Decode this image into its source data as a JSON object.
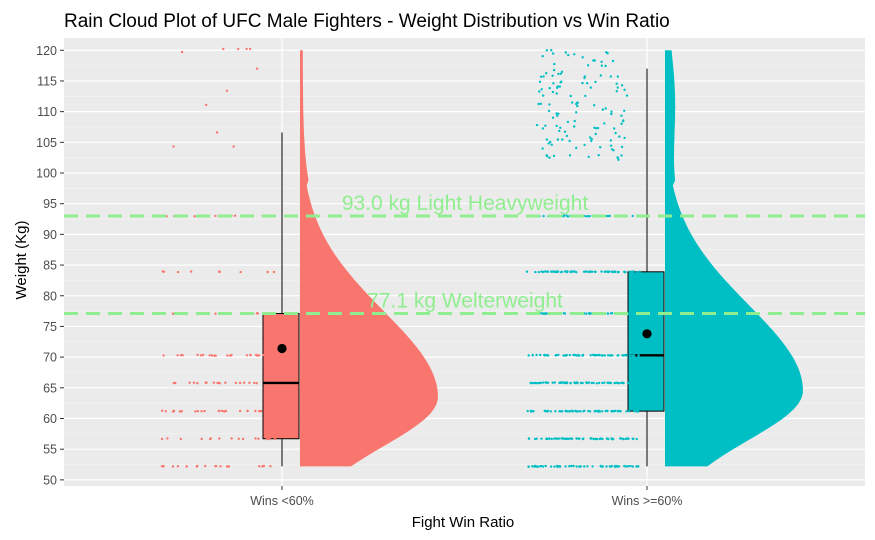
{
  "chart_data": {
    "type": "raincloud",
    "title": "Rain Cloud Plot of UFC Male Fighters - Weight Distribution vs Win Ratio",
    "xlabel": "Fight Win Ratio",
    "ylabel": "Weight (Kg)",
    "ylim": [
      49,
      122
    ],
    "yticks": [
      50,
      55,
      60,
      65,
      70,
      75,
      80,
      85,
      90,
      95,
      100,
      105,
      110,
      115,
      120
    ],
    "grid": true,
    "background": "#ebebeb",
    "categories": [
      "Wins <60%",
      "Wins >=60%"
    ],
    "series": [
      {
        "category": "Wins <60%",
        "color": "#f8766d",
        "boxplot": {
          "min": 52.2,
          "q1": 56.7,
          "median": 65.8,
          "q3": 77.1,
          "max": 106.6,
          "mean": 71.4
        },
        "density_max_at": 63.5,
        "weight_classes_points": [
          {
            "w": 52.2,
            "n": 20
          },
          {
            "w": 56.7,
            "n": 18
          },
          {
            "w": 61.2,
            "n": 28
          },
          {
            "w": 65.8,
            "n": 18
          },
          {
            "w": 70.3,
            "n": 22
          },
          {
            "w": 77.1,
            "n": 14
          },
          {
            "w": 83.9,
            "n": 10
          },
          {
            "w": 93.0,
            "n": 12
          }
        ],
        "outliers_above": [
          104.3,
          104.3,
          106.6,
          111.1,
          113.4,
          117.0,
          119.7,
          120.2,
          120.2,
          120.2,
          120.2
        ]
      },
      {
        "category": "Wins >=60%",
        "color": "#00bfc4",
        "boxplot": {
          "min": 52.2,
          "q1": 61.2,
          "median": 70.3,
          "q3": 83.9,
          "max": 117.0,
          "mean": 73.8
        },
        "density_max_at": 64.5,
        "weight_classes_points": [
          {
            "w": 52.2,
            "n": 60
          },
          {
            "w": 56.7,
            "n": 60
          },
          {
            "w": 61.2,
            "n": 60
          },
          {
            "w": 65.8,
            "n": 60
          },
          {
            "w": 70.3,
            "n": 60
          },
          {
            "w": 77.1,
            "n": 60
          },
          {
            "w": 83.9,
            "n": 60
          },
          {
            "w": 93.0,
            "n": 40
          }
        ],
        "heavyweight_cluster": {
          "from": 102.1,
          "to": 120.2,
          "n": 130
        }
      }
    ],
    "reference_lines": [
      {
        "y": 93.0,
        "label": "93.0 kg Light Heavyweight",
        "color": "#90ee90",
        "style": "dashed"
      },
      {
        "y": 77.1,
        "label": "77.1 kg Welterweight",
        "color": "#90ee90",
        "style": "dashed"
      }
    ]
  }
}
